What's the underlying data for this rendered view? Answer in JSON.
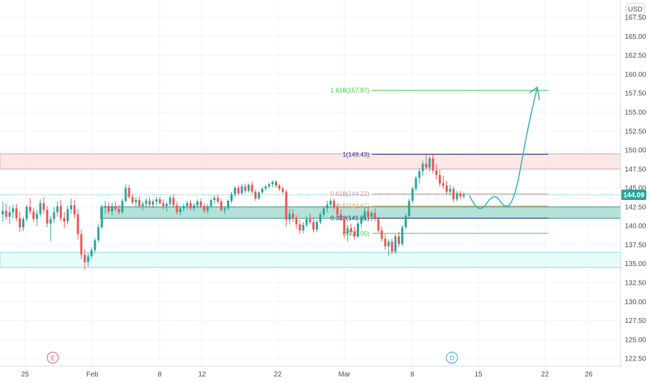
{
  "chart_data": {
    "type": "candlestick",
    "currency_label": "USD",
    "last_price": "144.09",
    "price_axis": {
      "ylim": [
        121.5,
        169.8
      ],
      "ticks": [
        "167.50",
        "165.00",
        "162.50",
        "160.00",
        "157.50",
        "155.00",
        "152.50",
        "150.00",
        "147.50",
        "145.00",
        "142.50",
        "140.00",
        "137.50",
        "135.00",
        "132.50",
        "130.00",
        "127.50",
        "125.00",
        "122.50"
      ]
    },
    "time_axis": {
      "ticks": [
        "25",
        "Feb",
        "8",
        "12",
        "22",
        "Mar",
        "8",
        "15",
        "22",
        "26"
      ]
    },
    "zones": [
      {
        "name": "resistance-zone",
        "low": 147.5,
        "high": 149.5,
        "fill": "#fbe3e3",
        "stroke": "#e6a0a0"
      },
      {
        "name": "middle-zone",
        "low": 141.0,
        "high": 142.5,
        "fill": "#a7dcd2",
        "stroke": "#2e8f86"
      },
      {
        "name": "support-zone",
        "low": 134.5,
        "high": 136.5,
        "fill": "#e2fafb",
        "stroke": "#8fd6dc"
      }
    ],
    "fib_levels": [
      {
        "label": "1.618(157.87)",
        "value": 157.87,
        "color": "#33cc33"
      },
      {
        "label": "1(149.43)",
        "value": 149.43,
        "color": "#1f2f8a"
      },
      {
        "label": "0.618(144.22)",
        "value": 144.22,
        "color": "#e88a8a"
      },
      {
        "label": "0.5(142.61)",
        "value": 142.61,
        "color": "#f0a020"
      },
      {
        "label": "0.382(141.01)",
        "value": 141.01,
        "color": "#1f2f8a"
      },
      {
        "label": "0(139.00)",
        "value": 139.0,
        "color": "#33cc33"
      }
    ],
    "event_markers": [
      {
        "label": "E",
        "color": "#e05a6a"
      },
      {
        "label": "D",
        "color": "#3aa0e0"
      }
    ],
    "colors": {
      "up": "#26a69a",
      "down": "#ef5350",
      "projection": "#36b3b3",
      "grid": "#f0f3fa",
      "price_tag": "#26a69a"
    },
    "candles": [
      [
        141.5,
        143.2,
        140.5,
        142.0
      ],
      [
        142.0,
        143.0,
        140.8,
        141.2
      ],
      [
        141.2,
        142.6,
        140.2,
        141.8
      ],
      [
        141.8,
        142.8,
        141.0,
        142.3
      ],
      [
        142.3,
        142.9,
        140.6,
        141.0
      ],
      [
        141.0,
        141.9,
        139.2,
        139.8
      ],
      [
        139.8,
        141.2,
        139.3,
        140.9
      ],
      [
        140.9,
        142.8,
        140.6,
        142.5
      ],
      [
        142.5,
        143.6,
        141.5,
        141.9
      ],
      [
        141.9,
        142.4,
        140.5,
        140.9
      ],
      [
        140.9,
        142.1,
        140.0,
        141.6
      ],
      [
        141.6,
        143.5,
        141.2,
        143.0
      ],
      [
        143.0,
        143.8,
        141.6,
        142.1
      ],
      [
        142.1,
        142.6,
        139.8,
        140.3
      ],
      [
        140.3,
        141.4,
        138.0,
        140.9
      ],
      [
        140.9,
        142.5,
        140.4,
        141.8
      ],
      [
        141.8,
        143.2,
        141.2,
        142.6
      ],
      [
        142.6,
        143.4,
        140.6,
        141.0
      ],
      [
        141.0,
        141.8,
        139.7,
        140.6
      ],
      [
        140.6,
        142.6,
        140.2,
        142.2
      ],
      [
        142.2,
        143.6,
        141.6,
        142.7
      ],
      [
        142.7,
        143.4,
        141.0,
        141.5
      ],
      [
        141.5,
        142.2,
        138.2,
        138.9
      ],
      [
        138.9,
        139.5,
        135.6,
        136.2
      ],
      [
        136.2,
        136.9,
        134.2,
        135.2
      ],
      [
        135.2,
        136.4,
        134.6,
        136.0
      ],
      [
        136.0,
        137.2,
        135.6,
        136.8
      ],
      [
        136.8,
        138.4,
        136.5,
        138.1
      ],
      [
        138.1,
        140.2,
        137.8,
        139.8
      ],
      [
        139.8,
        142.8,
        139.6,
        142.4
      ],
      [
        142.4,
        143.3,
        141.6,
        142.6
      ],
      [
        142.6,
        143.1,
        141.6,
        141.9
      ],
      [
        141.9,
        143.0,
        141.4,
        142.6
      ],
      [
        142.6,
        143.2,
        141.9,
        142.2
      ],
      [
        142.2,
        142.8,
        141.5,
        141.8
      ],
      [
        141.8,
        143.6,
        141.6,
        143.3
      ],
      [
        143.3,
        145.5,
        143.1,
        145.0
      ],
      [
        145.0,
        145.4,
        143.6,
        143.8
      ],
      [
        143.8,
        144.2,
        142.8,
        143.1
      ],
      [
        143.1,
        143.8,
        142.6,
        143.4
      ],
      [
        143.4,
        143.9,
        142.3,
        142.6
      ],
      [
        142.6,
        143.2,
        142.0,
        142.9
      ],
      [
        142.9,
        143.6,
        142.4,
        143.3
      ],
      [
        143.3,
        143.8,
        142.5,
        142.8
      ],
      [
        142.8,
        143.5,
        142.3,
        143.2
      ],
      [
        143.2,
        143.8,
        142.7,
        143.5
      ],
      [
        143.5,
        143.9,
        142.8,
        143.0
      ],
      [
        143.0,
        143.5,
        142.2,
        142.6
      ],
      [
        142.6,
        143.2,
        141.9,
        142.9
      ],
      [
        142.9,
        144.0,
        142.6,
        143.7
      ],
      [
        143.7,
        144.2,
        142.4,
        142.7
      ],
      [
        142.7,
        143.2,
        141.5,
        141.8
      ],
      [
        141.8,
        142.6,
        141.4,
        142.3
      ],
      [
        142.3,
        142.9,
        141.9,
        142.6
      ],
      [
        142.6,
        143.3,
        142.2,
        143.0
      ],
      [
        143.0,
        143.4,
        142.0,
        142.3
      ],
      [
        142.3,
        143.0,
        141.9,
        142.7
      ],
      [
        142.7,
        143.5,
        142.3,
        143.2
      ],
      [
        143.2,
        143.6,
        142.3,
        142.6
      ],
      [
        142.6,
        143.0,
        141.7,
        142.0
      ],
      [
        142.0,
        142.9,
        141.6,
        142.6
      ],
      [
        142.6,
        143.6,
        142.3,
        143.4
      ],
      [
        143.4,
        144.0,
        142.9,
        143.7
      ],
      [
        143.7,
        144.1,
        142.9,
        143.2
      ],
      [
        143.2,
        143.6,
        141.9,
        142.1
      ],
      [
        142.1,
        142.6,
        141.6,
        142.3
      ],
      [
        142.3,
        143.5,
        142.1,
        143.3
      ],
      [
        143.3,
        144.5,
        143.0,
        144.2
      ],
      [
        144.2,
        145.2,
        143.8,
        145.0
      ],
      [
        145.0,
        145.3,
        144.0,
        144.3
      ],
      [
        144.3,
        145.5,
        144.0,
        145.2
      ],
      [
        145.2,
        145.6,
        144.3,
        144.6
      ],
      [
        144.6,
        145.6,
        144.4,
        145.4
      ],
      [
        145.4,
        145.9,
        144.2,
        144.5
      ],
      [
        144.5,
        144.8,
        143.3,
        143.6
      ],
      [
        143.6,
        144.6,
        143.4,
        144.4
      ],
      [
        144.4,
        145.1,
        144.2,
        144.9
      ],
      [
        144.9,
        145.4,
        144.6,
        145.2
      ],
      [
        145.2,
        145.7,
        144.9,
        145.5
      ],
      [
        145.5,
        146.0,
        145.1,
        145.8
      ],
      [
        145.8,
        146.0,
        145.0,
        145.3
      ],
      [
        145.3,
        145.5,
        144.6,
        144.9
      ],
      [
        144.9,
        145.2,
        144.2,
        144.5
      ],
      [
        144.5,
        144.8,
        139.9,
        140.8
      ],
      [
        140.8,
        142.2,
        140.2,
        141.6
      ],
      [
        141.6,
        142.2,
        140.5,
        141.0
      ],
      [
        141.0,
        141.4,
        139.6,
        140.2
      ],
      [
        140.2,
        140.8,
        138.9,
        139.4
      ],
      [
        139.4,
        140.5,
        139.0,
        140.1
      ],
      [
        140.1,
        141.3,
        139.8,
        140.9
      ],
      [
        140.9,
        141.6,
        140.2,
        140.5
      ],
      [
        140.5,
        141.1,
        139.1,
        139.5
      ],
      [
        139.5,
        140.8,
        139.2,
        140.5
      ],
      [
        140.5,
        141.8,
        140.2,
        141.5
      ],
      [
        141.5,
        142.6,
        141.2,
        142.3
      ],
      [
        142.3,
        143.3,
        141.8,
        142.8
      ],
      [
        142.8,
        143.6,
        142.3,
        143.3
      ],
      [
        143.3,
        143.6,
        142.1,
        142.4
      ],
      [
        142.4,
        142.9,
        141.2,
        141.5
      ],
      [
        141.5,
        142.2,
        140.6,
        140.9
      ],
      [
        140.9,
        141.3,
        138.4,
        139.0
      ],
      [
        139.0,
        140.1,
        137.9,
        139.7
      ],
      [
        139.7,
        140.3,
        138.8,
        139.2
      ],
      [
        139.2,
        139.9,
        138.2,
        138.6
      ],
      [
        138.6,
        140.6,
        138.4,
        140.3
      ],
      [
        140.3,
        141.4,
        139.8,
        141.1
      ],
      [
        141.1,
        142.4,
        140.6,
        141.9
      ],
      [
        141.9,
        142.6,
        140.9,
        141.2
      ],
      [
        141.2,
        142.0,
        140.6,
        141.7
      ],
      [
        141.7,
        142.3,
        140.6,
        140.9
      ],
      [
        140.9,
        141.2,
        139.1,
        139.4
      ],
      [
        139.4,
        139.9,
        137.9,
        138.3
      ],
      [
        138.3,
        138.9,
        136.8,
        137.3
      ],
      [
        137.3,
        138.2,
        136.0,
        137.9
      ],
      [
        137.9,
        138.3,
        136.2,
        136.6
      ],
      [
        136.6,
        138.9,
        136.3,
        138.6
      ],
      [
        138.6,
        139.2,
        137.2,
        137.6
      ],
      [
        137.6,
        140.1,
        137.4,
        139.8
      ],
      [
        139.8,
        141.6,
        139.6,
        141.3
      ],
      [
        141.3,
        143.6,
        141.0,
        143.3
      ],
      [
        143.3,
        145.2,
        143.0,
        144.9
      ],
      [
        144.9,
        146.6,
        144.6,
        146.3
      ],
      [
        146.3,
        147.6,
        145.6,
        147.2
      ],
      [
        147.2,
        148.6,
        146.6,
        148.2
      ],
      [
        148.2,
        149.4,
        147.4,
        147.7
      ],
      [
        147.7,
        149.2,
        147.2,
        148.9
      ],
      [
        148.9,
        149.43,
        146.9,
        147.3
      ],
      [
        147.3,
        148.1,
        146.1,
        146.7
      ],
      [
        146.7,
        147.4,
        145.2,
        145.6
      ],
      [
        145.6,
        146.6,
        144.9,
        145.3
      ],
      [
        145.3,
        145.9,
        144.1,
        144.5
      ],
      [
        144.5,
        145.4,
        144.0,
        144.9
      ],
      [
        144.9,
        145.2,
        143.1,
        143.5
      ],
      [
        143.5,
        144.6,
        143.2,
        144.3
      ],
      [
        144.3,
        144.6,
        143.5,
        143.9
      ],
      [
        143.9,
        144.4,
        143.6,
        144.1
      ]
    ],
    "projection_path": [
      [
        0,
        144.0
      ],
      [
        2,
        142.4
      ],
      [
        4,
        142.2
      ],
      [
        6,
        143.6
      ],
      [
        8,
        144.0
      ],
      [
        10,
        142.6
      ],
      [
        12,
        142.6
      ],
      [
        14,
        145.0
      ],
      [
        16,
        150.0
      ],
      [
        18,
        154.5
      ],
      [
        20,
        158.3
      ]
    ]
  }
}
